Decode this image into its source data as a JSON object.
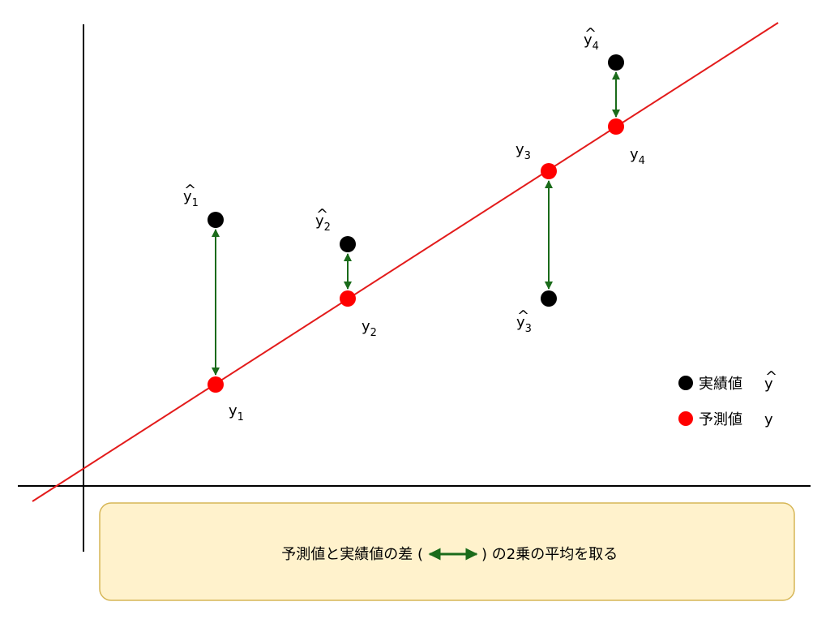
{
  "points": [
    {
      "actual": {
        "hat": "^",
        "symbol": "y",
        "sub": "1"
      },
      "predicted": {
        "symbol": "y",
        "sub": "1"
      }
    },
    {
      "actual": {
        "hat": "^",
        "symbol": "y",
        "sub": "2"
      },
      "predicted": {
        "symbol": "y",
        "sub": "2"
      }
    },
    {
      "actual": {
        "hat": "^",
        "symbol": "y",
        "sub": "3"
      },
      "predicted": {
        "symbol": "y",
        "sub": "3"
      }
    },
    {
      "actual": {
        "hat": "^",
        "symbol": "y",
        "sub": "4"
      },
      "predicted": {
        "symbol": "y",
        "sub": "4"
      }
    }
  ],
  "legend": [
    {
      "label": "実績値",
      "hat": "^",
      "symbol": "y"
    },
    {
      "label": "予測値",
      "symbol": "y"
    }
  ],
  "note": {
    "before": "予測値と実績値の差 (",
    "after": ") の2乗の平均を取る"
  }
}
